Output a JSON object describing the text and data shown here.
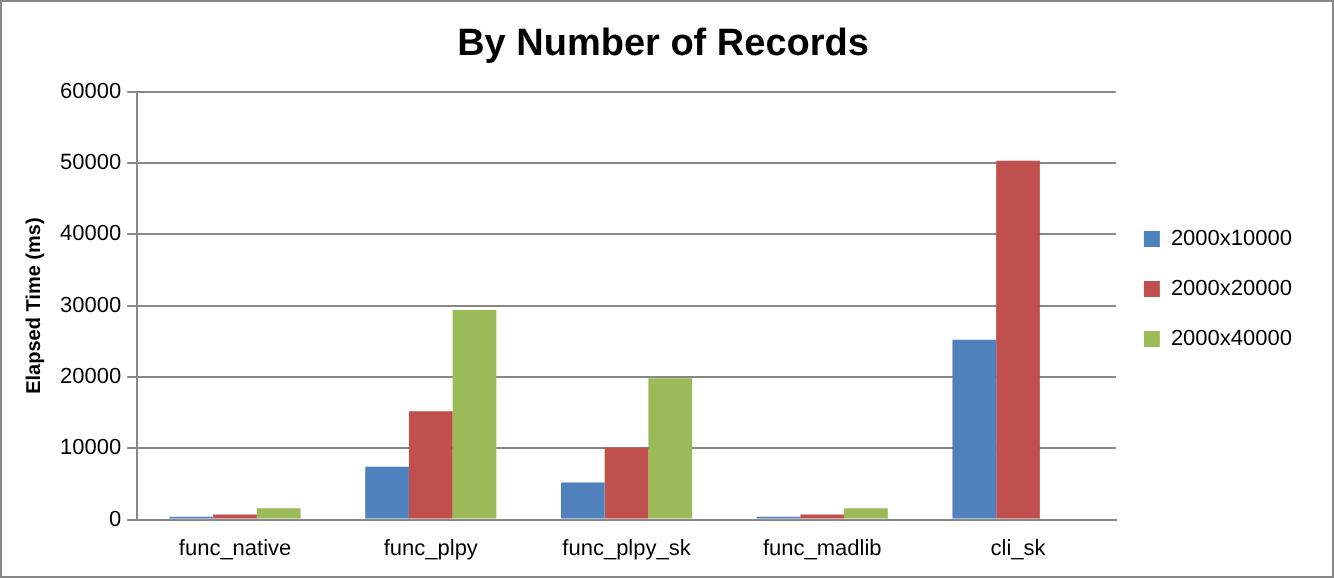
{
  "chart_data": {
    "type": "bar",
    "title": "By Number of Records",
    "ylabel": "Elapsed Time (ms)",
    "categories": [
      "func_native",
      "func_plpy",
      "func_plpy_sk",
      "func_madlib",
      "cli_sk"
    ],
    "series": [
      {
        "name": "2000x10000",
        "color": "#4f81bd",
        "values": [
          400,
          7400,
          5200,
          400,
          25200
        ]
      },
      {
        "name": "2000x20000",
        "color": "#c0504d",
        "values": [
          700,
          15200,
          10100,
          700,
          50300
        ]
      },
      {
        "name": "2000x40000",
        "color": "#9bbb59",
        "values": [
          1600,
          29400,
          19800,
          1600,
          null
        ]
      }
    ],
    "ylim": [
      0,
      60000
    ],
    "yticks": [
      0,
      10000,
      20000,
      30000,
      40000,
      50000,
      60000
    ],
    "grid": "y",
    "legend": "right"
  }
}
